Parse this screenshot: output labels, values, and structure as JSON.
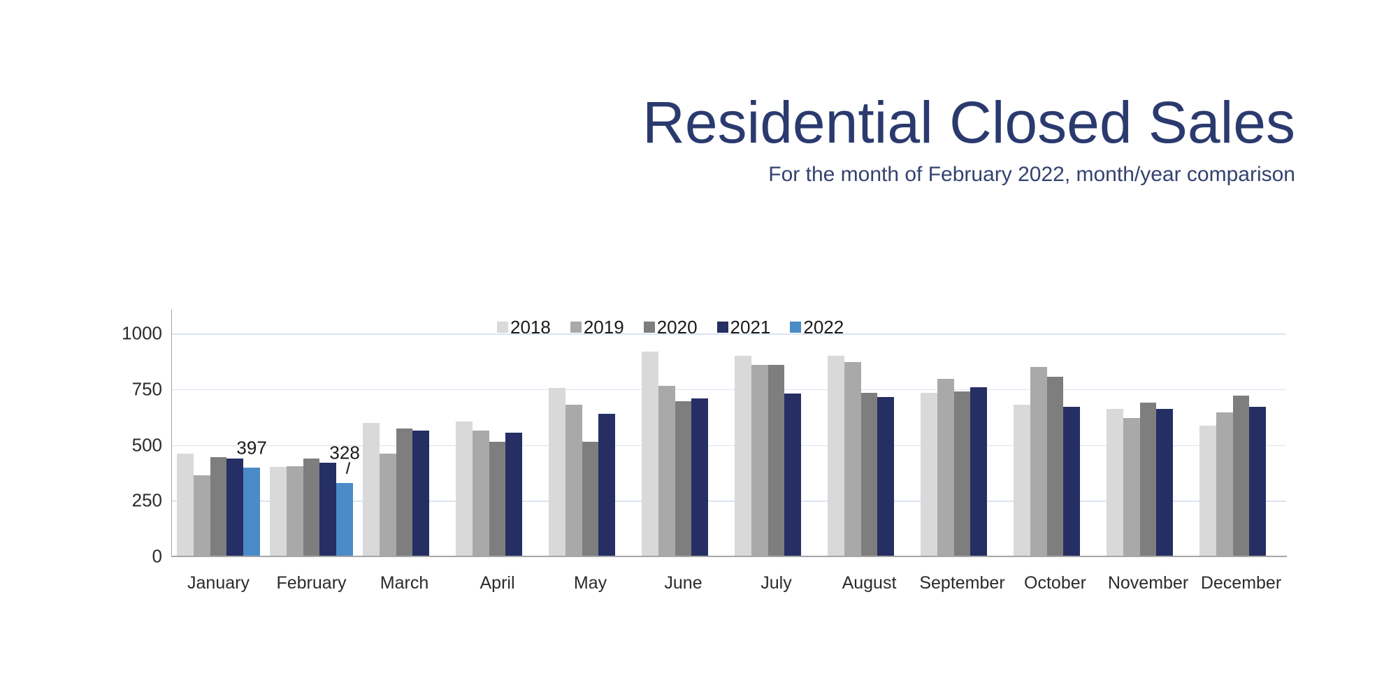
{
  "chart_data": {
    "type": "bar",
    "title": "Residential Closed Sales",
    "subtitle": "For the month of February 2022, month/year comparison",
    "title_color": "#2b3a6e",
    "subtitle_color": "#33426f",
    "categories": [
      "January",
      "February",
      "March",
      "April",
      "May",
      "June",
      "July",
      "August",
      "September",
      "October",
      "November",
      "December"
    ],
    "series": [
      {
        "name": "2018",
        "color": "#d9d9d9",
        "values": [
          460,
          400,
          600,
          605,
          755,
          920,
          900,
          900,
          735,
          680,
          660,
          585
        ]
      },
      {
        "name": "2019",
        "color": "#a9a9a9",
        "values": [
          365,
          405,
          460,
          565,
          680,
          765,
          860,
          870,
          795,
          850,
          620,
          645
        ]
      },
      {
        "name": "2020",
        "color": "#7e7e7e",
        "values": [
          445,
          440,
          575,
          515,
          515,
          695,
          860,
          735,
          740,
          805,
          690,
          720
        ]
      },
      {
        "name": "2021",
        "color": "#252f63",
        "values": [
          440,
          420,
          565,
          555,
          640,
          710,
          730,
          715,
          760,
          670,
          660,
          670
        ]
      },
      {
        "name": "2022",
        "color": "#4b8bc8",
        "values": [
          397,
          328,
          null,
          null,
          null,
          null,
          null,
          null,
          null,
          null,
          null,
          null
        ]
      }
    ],
    "annotations": [
      {
        "category": "January",
        "series": "2022",
        "text": "397",
        "leader": false
      },
      {
        "category": "February",
        "series": "2022",
        "text": "328",
        "leader": true
      }
    ],
    "y_ticks": [
      0,
      250,
      500,
      750,
      1000
    ],
    "ylim": [
      0,
      1105
    ],
    "grid": true,
    "grid_color": "#dce3f2",
    "axis_color": "#a6a6a6",
    "label_color": "#2b2b2b",
    "legend_position": "top-center",
    "legend": [
      "2018",
      "2019",
      "2020",
      "2021",
      "2022"
    ]
  }
}
